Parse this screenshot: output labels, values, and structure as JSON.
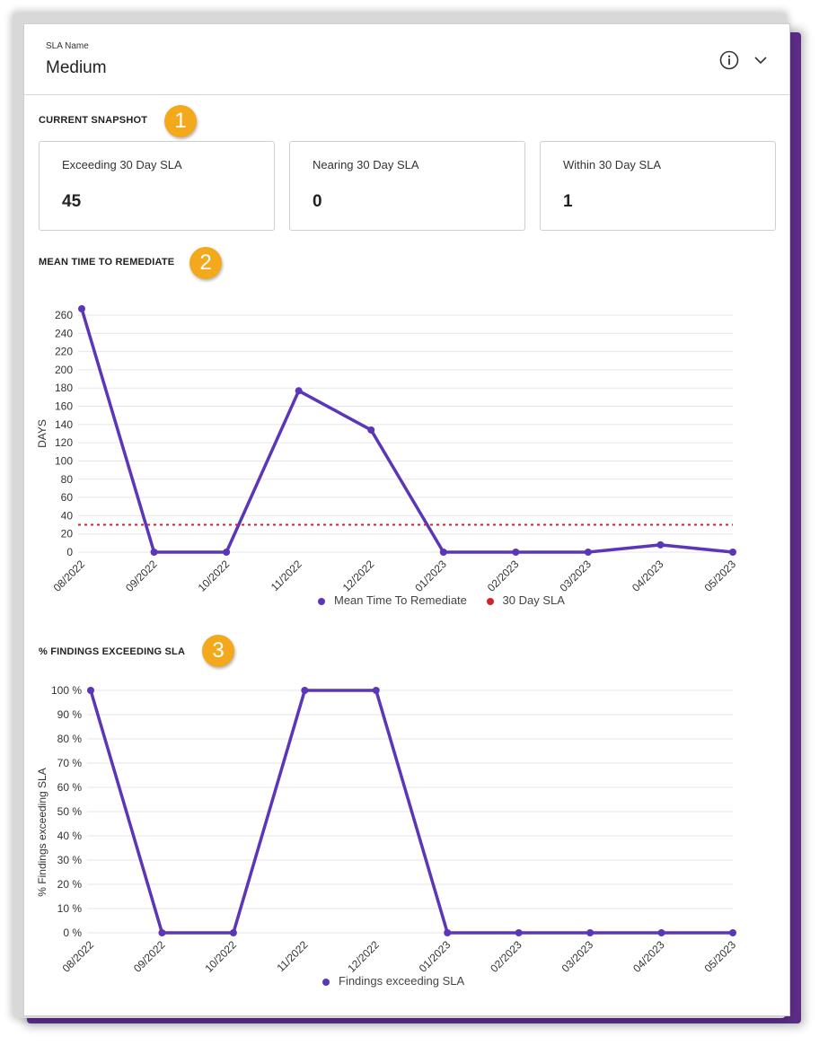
{
  "header": {
    "caption": "SLA Name",
    "value": "Medium"
  },
  "snapshot": {
    "title": "CURRENT SNAPSHOT",
    "badge": "1",
    "cards": [
      {
        "label": "Exceeding 30 Day SLA",
        "value": "45"
      },
      {
        "label": "Nearing 30 Day SLA",
        "value": "0"
      },
      {
        "label": "Within 30 Day SLA",
        "value": "1"
      }
    ]
  },
  "mttr": {
    "title": "MEAN TIME TO REMEDIATE",
    "badge": "2",
    "legend": [
      {
        "label": "Mean Time To Remediate",
        "color": "#5b36b8"
      },
      {
        "label": "30 Day SLA",
        "color": "#d0242b"
      }
    ]
  },
  "findings": {
    "title": "% FINDINGS EXCEEDING SLA",
    "badge": "3",
    "legend": [
      {
        "label": "Findings exceeding SLA",
        "color": "#5b36b8"
      }
    ]
  },
  "chart_data": [
    {
      "type": "line",
      "ylabel": "DAYS",
      "x": [
        "08/2022",
        "09/2022",
        "10/2022",
        "11/2022",
        "12/2022",
        "01/2023",
        "02/2023",
        "03/2023",
        "04/2023",
        "05/2023"
      ],
      "ylim": [
        0,
        260
      ],
      "yticks": [
        "0",
        "20",
        "40",
        "60",
        "80",
        "100",
        "120",
        "140",
        "160",
        "180",
        "200",
        "220",
        "240",
        "260"
      ],
      "series": [
        {
          "name": "Mean Time To Remediate",
          "values": [
            267,
            0,
            0,
            177,
            134,
            0,
            0,
            0,
            8,
            0
          ],
          "color": "#5b36b8"
        },
        {
          "name": "30 Day SLA",
          "values": [
            30,
            30,
            30,
            30,
            30,
            30,
            30,
            30,
            30,
            30
          ],
          "color": "#d0242b",
          "style": "dotted"
        }
      ]
    },
    {
      "type": "line",
      "ylabel": "% Findings exceeding SLA",
      "x": [
        "08/2022",
        "09/2022",
        "10/2022",
        "11/2022",
        "12/2022",
        "01/2023",
        "02/2023",
        "03/2023",
        "04/2023",
        "05/2023"
      ],
      "ylim": [
        0,
        100
      ],
      "yticks": [
        "0 %",
        "10 %",
        "20 %",
        "30 %",
        "40 %",
        "50 %",
        "60 %",
        "70 %",
        "80 %",
        "90 %",
        "100 %"
      ],
      "series": [
        {
          "name": "Findings exceeding SLA",
          "values": [
            100,
            0,
            0,
            100,
            100,
            0,
            0,
            0,
            0,
            0
          ],
          "color": "#5b36b8"
        }
      ]
    }
  ]
}
